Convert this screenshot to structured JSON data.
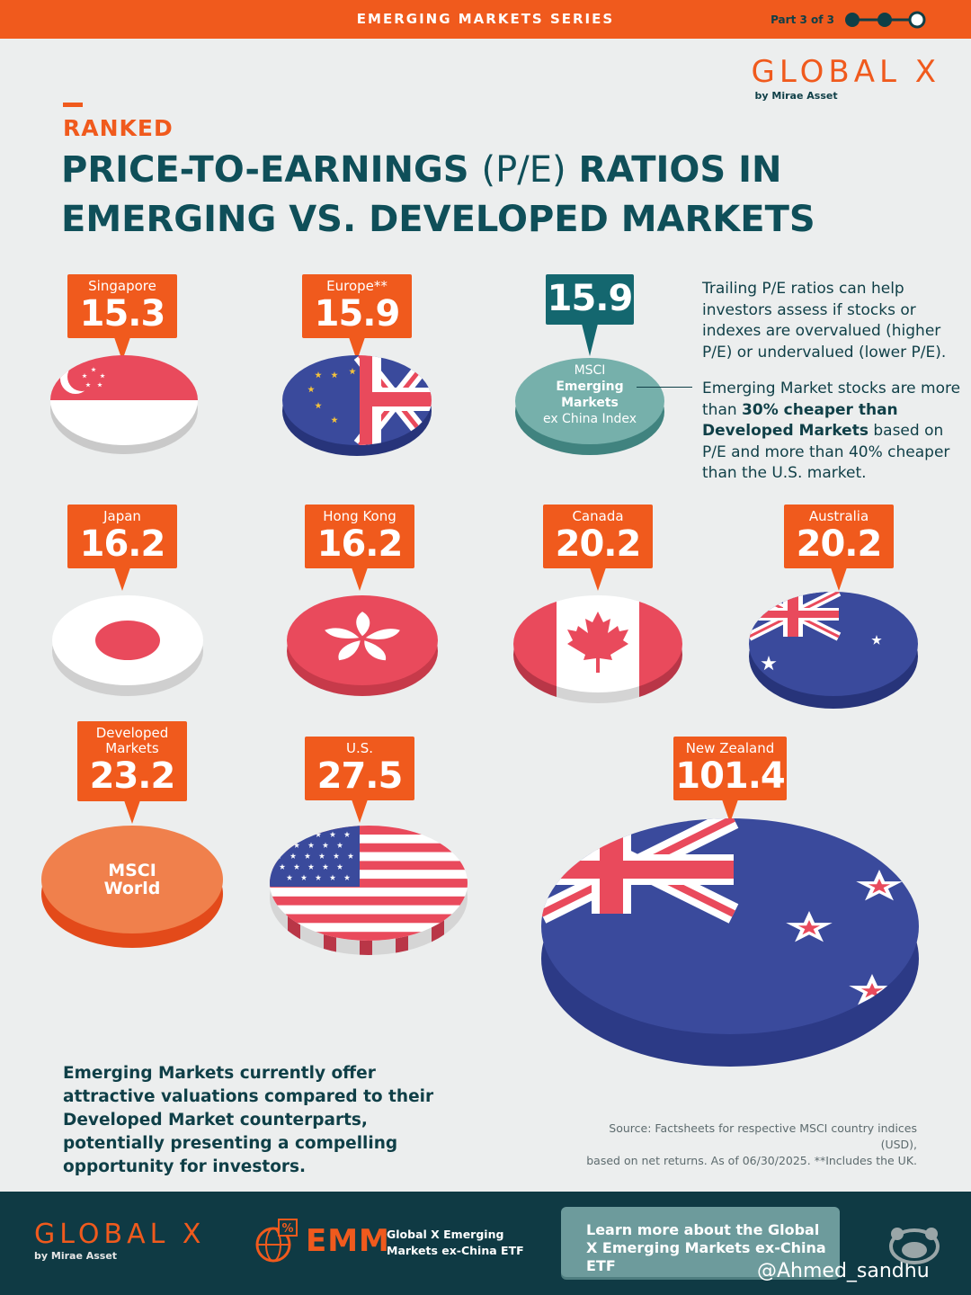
{
  "header": {
    "series": "EMERGING MARKETS SERIES",
    "part": "Part 3 of 3"
  },
  "brand": {
    "name": "GLOBAL X",
    "by": "by Mirae Asset"
  },
  "kicker": "RANKED",
  "title": {
    "line1a": "PRICE-TO-EARNINGS ",
    "line1b": "(P/E)",
    "line1c": " RATIOS IN",
    "line2": "EMERGING VS. DEVELOPED MARKETS"
  },
  "chart_data": {
    "type": "bubble",
    "metric": "Trailing P/E ratio",
    "points": [
      {
        "name": "Singapore",
        "value": 15.3
      },
      {
        "name": "Europe**",
        "value": 15.9
      },
      {
        "name": "MSCI Emerging Markets ex China Index",
        "value": 15.9
      },
      {
        "name": "Japan",
        "value": 16.2
      },
      {
        "name": "Hong Kong",
        "value": 16.2
      },
      {
        "name": "Canada",
        "value": 20.2
      },
      {
        "name": "Australia",
        "value": 20.2
      },
      {
        "name": "Developed Markets",
        "value": 23.2
      },
      {
        "name": "U.S.",
        "value": 27.5
      },
      {
        "name": "New Zealand",
        "value": 101.4
      }
    ]
  },
  "labels": {
    "sg": {
      "name": "Singapore",
      "value": "15.3"
    },
    "eu": {
      "name": "Europe**",
      "value": "15.9"
    },
    "em": {
      "value": "15.9",
      "line1": "MSCI",
      "line2": "Emerging",
      "line3": "Markets",
      "line4": "ex China Index"
    },
    "jp": {
      "name": "Japan",
      "value": "16.2"
    },
    "hk": {
      "name": "Hong Kong",
      "value": "16.2"
    },
    "ca": {
      "name": "Canada",
      "value": "20.2"
    },
    "au": {
      "name": "Australia",
      "value": "20.2"
    },
    "dm": {
      "name1": "Developed",
      "name2": "Markets",
      "value": "23.2",
      "disc1": "MSCI",
      "disc2": "World"
    },
    "us": {
      "name": "U.S.",
      "value": "27.5"
    },
    "nz": {
      "name": "New Zealand",
      "value": "101.4"
    }
  },
  "notes": {
    "n1": "Trailing P/E ratios can help investors assess if stocks or indexes are overvalued (higher P/E) or undervalued (lower P/E).",
    "n2a": "Emerging Market stocks are more than ",
    "n2b": "30% cheaper than Developed Markets",
    "n2c": " based on P/E and more than 40% cheaper than the U.S. market."
  },
  "bottom_text": "Emerging Markets currently offer attractive valuations compared to their Developed Market counterparts, potentially presenting a compelling opportunity for investors.",
  "source": {
    "line1": "Source: Factsheets for respective MSCI country indices (USD),",
    "line2": "based on net returns. As of 06/30/2025. **Includes the UK."
  },
  "footer": {
    "brand": "GLOBAL X",
    "by": "by Mirae Asset",
    "ticker": "EMM",
    "fund": "Global X Emerging Markets ex-China ETF",
    "cta": "Learn more about the Global X Emerging Markets ex-China ETF",
    "handle": "@Ahmed_sandhu"
  },
  "colors": {
    "orange": "#f05a1d",
    "teal": "#14676f",
    "navy": "#0f3a44",
    "flag_red": "#e94a5c",
    "flag_blue": "#3a4a9c"
  }
}
